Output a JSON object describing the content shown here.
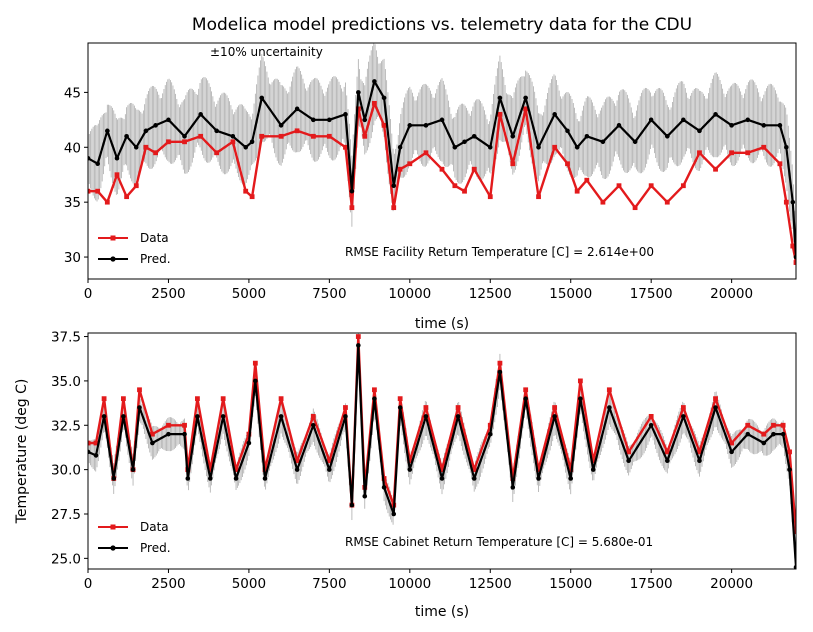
{
  "title": "Modelica model predictions vs. telemetry data for the CDU",
  "colors": {
    "data": "#e31a1c",
    "data_dark": "#b00000",
    "pred": "#000000",
    "band": "#9e9e9e"
  },
  "chart_data": [
    {
      "type": "line",
      "name": "facility",
      "xlabel": "time (s)",
      "ylabel": "",
      "xlim": [
        0,
        22000
      ],
      "ylim": [
        28,
        49.5
      ],
      "xticks": [
        0,
        2500,
        5000,
        7500,
        10000,
        12500,
        15000,
        17500,
        20000
      ],
      "xtick_labels": [
        "0",
        "2500",
        "5000",
        "7500",
        "10000",
        "12500",
        "15000",
        "17500",
        "20000"
      ],
      "yticks": [
        30,
        35,
        40,
        45
      ],
      "ytick_labels": [
        "30",
        "35",
        "40",
        "45"
      ],
      "band_label": "±10% uncertainity",
      "annotation": "RMSE Facility Return Temperature [C] = 2.614e+00",
      "legend": [
        "Data",
        "Pred."
      ],
      "legend_loc": "lower left",
      "grid": false,
      "series": [
        {
          "name": "Data",
          "x": [
            0,
            300,
            600,
            900,
            1200,
            1500,
            1800,
            2100,
            2500,
            3000,
            3500,
            4000,
            4500,
            4900,
            5100,
            5400,
            6000,
            6500,
            7000,
            7500,
            8000,
            8200,
            8400,
            8600,
            8900,
            9200,
            9500,
            9700,
            10000,
            10500,
            11000,
            11400,
            11700,
            12000,
            12500,
            12800,
            13200,
            13600,
            14000,
            14500,
            14900,
            15200,
            15500,
            16000,
            16500,
            17000,
            17500,
            18000,
            18500,
            19000,
            19500,
            20000,
            20500,
            21000,
            21500,
            21700,
            21900,
            22000
          ],
          "y": [
            36,
            36,
            35,
            37.5,
            35.5,
            36.5,
            40,
            39.5,
            40.5,
            40.5,
            41,
            39.5,
            40.5,
            36,
            35.5,
            41,
            41,
            41.5,
            41,
            41,
            40,
            34.5,
            43.5,
            41,
            44,
            42,
            34.5,
            38,
            38.5,
            39.5,
            38,
            36.5,
            36,
            38,
            35.5,
            43,
            38.5,
            43.5,
            35.5,
            40,
            38.5,
            36,
            37,
            35,
            36.5,
            34.5,
            36.5,
            35,
            36.5,
            39.5,
            38,
            39.5,
            39.5,
            40,
            38.5,
            35,
            31,
            29.5
          ]
        },
        {
          "name": "Pred.",
          "x": [
            0,
            300,
            600,
            900,
            1200,
            1500,
            1800,
            2100,
            2500,
            3000,
            3500,
            4000,
            4500,
            4900,
            5100,
            5400,
            6000,
            6500,
            7000,
            7500,
            8000,
            8200,
            8400,
            8600,
            8900,
            9200,
            9500,
            9700,
            10000,
            10500,
            11000,
            11400,
            11700,
            12000,
            12500,
            12800,
            13200,
            13600,
            14000,
            14500,
            14900,
            15200,
            15500,
            16000,
            16500,
            17000,
            17500,
            18000,
            18500,
            19000,
            19500,
            20000,
            20500,
            21000,
            21500,
            21700,
            21900,
            22000
          ],
          "y": [
            39,
            38.5,
            41.5,
            39,
            41,
            40,
            41.5,
            42,
            42.5,
            41,
            43,
            41.5,
            41,
            40,
            40.5,
            44.5,
            42,
            43.5,
            42.5,
            42.5,
            43,
            36,
            45,
            42.5,
            46,
            44.5,
            36.5,
            40,
            42,
            42,
            42.5,
            40,
            40.5,
            41,
            40,
            44.5,
            41,
            44.5,
            40,
            43,
            41.5,
            40,
            41,
            40.5,
            42,
            40.5,
            42.5,
            41,
            42.5,
            41.5,
            43,
            42,
            42.5,
            42,
            42,
            40,
            35,
            30
          ]
        }
      ]
    },
    {
      "type": "line",
      "name": "cabinet",
      "xlabel": "time (s)",
      "ylabel": "Temperature (deg C)",
      "xlim": [
        0,
        22000
      ],
      "ylim": [
        24.4,
        37.7
      ],
      "xticks": [
        0,
        2500,
        5000,
        7500,
        10000,
        12500,
        15000,
        17500,
        20000
      ],
      "xtick_labels": [
        "0",
        "2500",
        "5000",
        "7500",
        "10000",
        "12500",
        "15000",
        "17500",
        "20000"
      ],
      "yticks": [
        25.0,
        27.5,
        30.0,
        32.5,
        35.0,
        37.5
      ],
      "ytick_labels": [
        "25.0",
        "27.5",
        "30.0",
        "32.5",
        "35.0",
        "37.5"
      ],
      "annotation": "RMSE Cabinet Return Temperature [C] = 5.680e-01",
      "legend": [
        "Data",
        "Pred."
      ],
      "legend_loc": "lower left",
      "grid": false,
      "series": [
        {
          "name": "Data",
          "x": [
            0,
            250,
            500,
            800,
            1100,
            1400,
            1600,
            2000,
            2500,
            3000,
            3100,
            3400,
            3800,
            4200,
            4600,
            5000,
            5200,
            5500,
            6000,
            6500,
            7000,
            7500,
            8000,
            8200,
            8400,
            8600,
            8900,
            9200,
            9500,
            9700,
            10000,
            10500,
            11000,
            11500,
            12000,
            12500,
            12800,
            13200,
            13600,
            14000,
            14500,
            15000,
            15300,
            15700,
            16200,
            16800,
            17500,
            18000,
            18500,
            19000,
            19500,
            20000,
            20500,
            21000,
            21300,
            21600,
            21800,
            22000
          ],
          "y": [
            31.5,
            31.5,
            34,
            29.5,
            34,
            30,
            34.5,
            32,
            32.5,
            32.5,
            30,
            34,
            30,
            34,
            30,
            32,
            36,
            30,
            34,
            30.5,
            33,
            30.5,
            33.5,
            28,
            37.5,
            29,
            34.5,
            29.5,
            28,
            34,
            30.5,
            33.5,
            30,
            33.5,
            30,
            32.5,
            36,
            29.5,
            34.5,
            30,
            33.5,
            30,
            35,
            30.5,
            34.5,
            31,
            33,
            31,
            33.5,
            31,
            34,
            31.5,
            32.5,
            32,
            32.5,
            32.5,
            31,
            26.5
          ]
        },
        {
          "name": "Pred.",
          "x": [
            0,
            250,
            500,
            800,
            1100,
            1400,
            1600,
            2000,
            2500,
            3000,
            3100,
            3400,
            3800,
            4200,
            4600,
            5000,
            5200,
            5500,
            6000,
            6500,
            7000,
            7500,
            8000,
            8200,
            8400,
            8600,
            8900,
            9200,
            9500,
            9700,
            10000,
            10500,
            11000,
            11500,
            12000,
            12500,
            12800,
            13200,
            13600,
            14000,
            14500,
            15000,
            15300,
            15700,
            16200,
            16800,
            17500,
            18000,
            18500,
            19000,
            19500,
            20000,
            20500,
            21000,
            21300,
            21600,
            21800,
            22000
          ],
          "y": [
            31,
            30.8,
            33,
            29.5,
            33,
            30,
            33.5,
            31.5,
            32,
            32,
            29.5,
            33,
            29.5,
            33,
            29.5,
            31.5,
            35,
            29.5,
            33,
            30,
            32.5,
            30,
            33,
            28,
            37,
            28.5,
            34,
            29,
            27.5,
            33.5,
            30,
            33,
            29.5,
            33,
            29.5,
            32,
            35.5,
            29,
            34,
            29.5,
            33,
            29.5,
            34,
            30,
            33.5,
            30.5,
            32.5,
            30.5,
            33,
            30.5,
            33.5,
            31,
            32,
            31.5,
            32,
            32,
            30,
            24.5
          ]
        }
      ]
    }
  ]
}
